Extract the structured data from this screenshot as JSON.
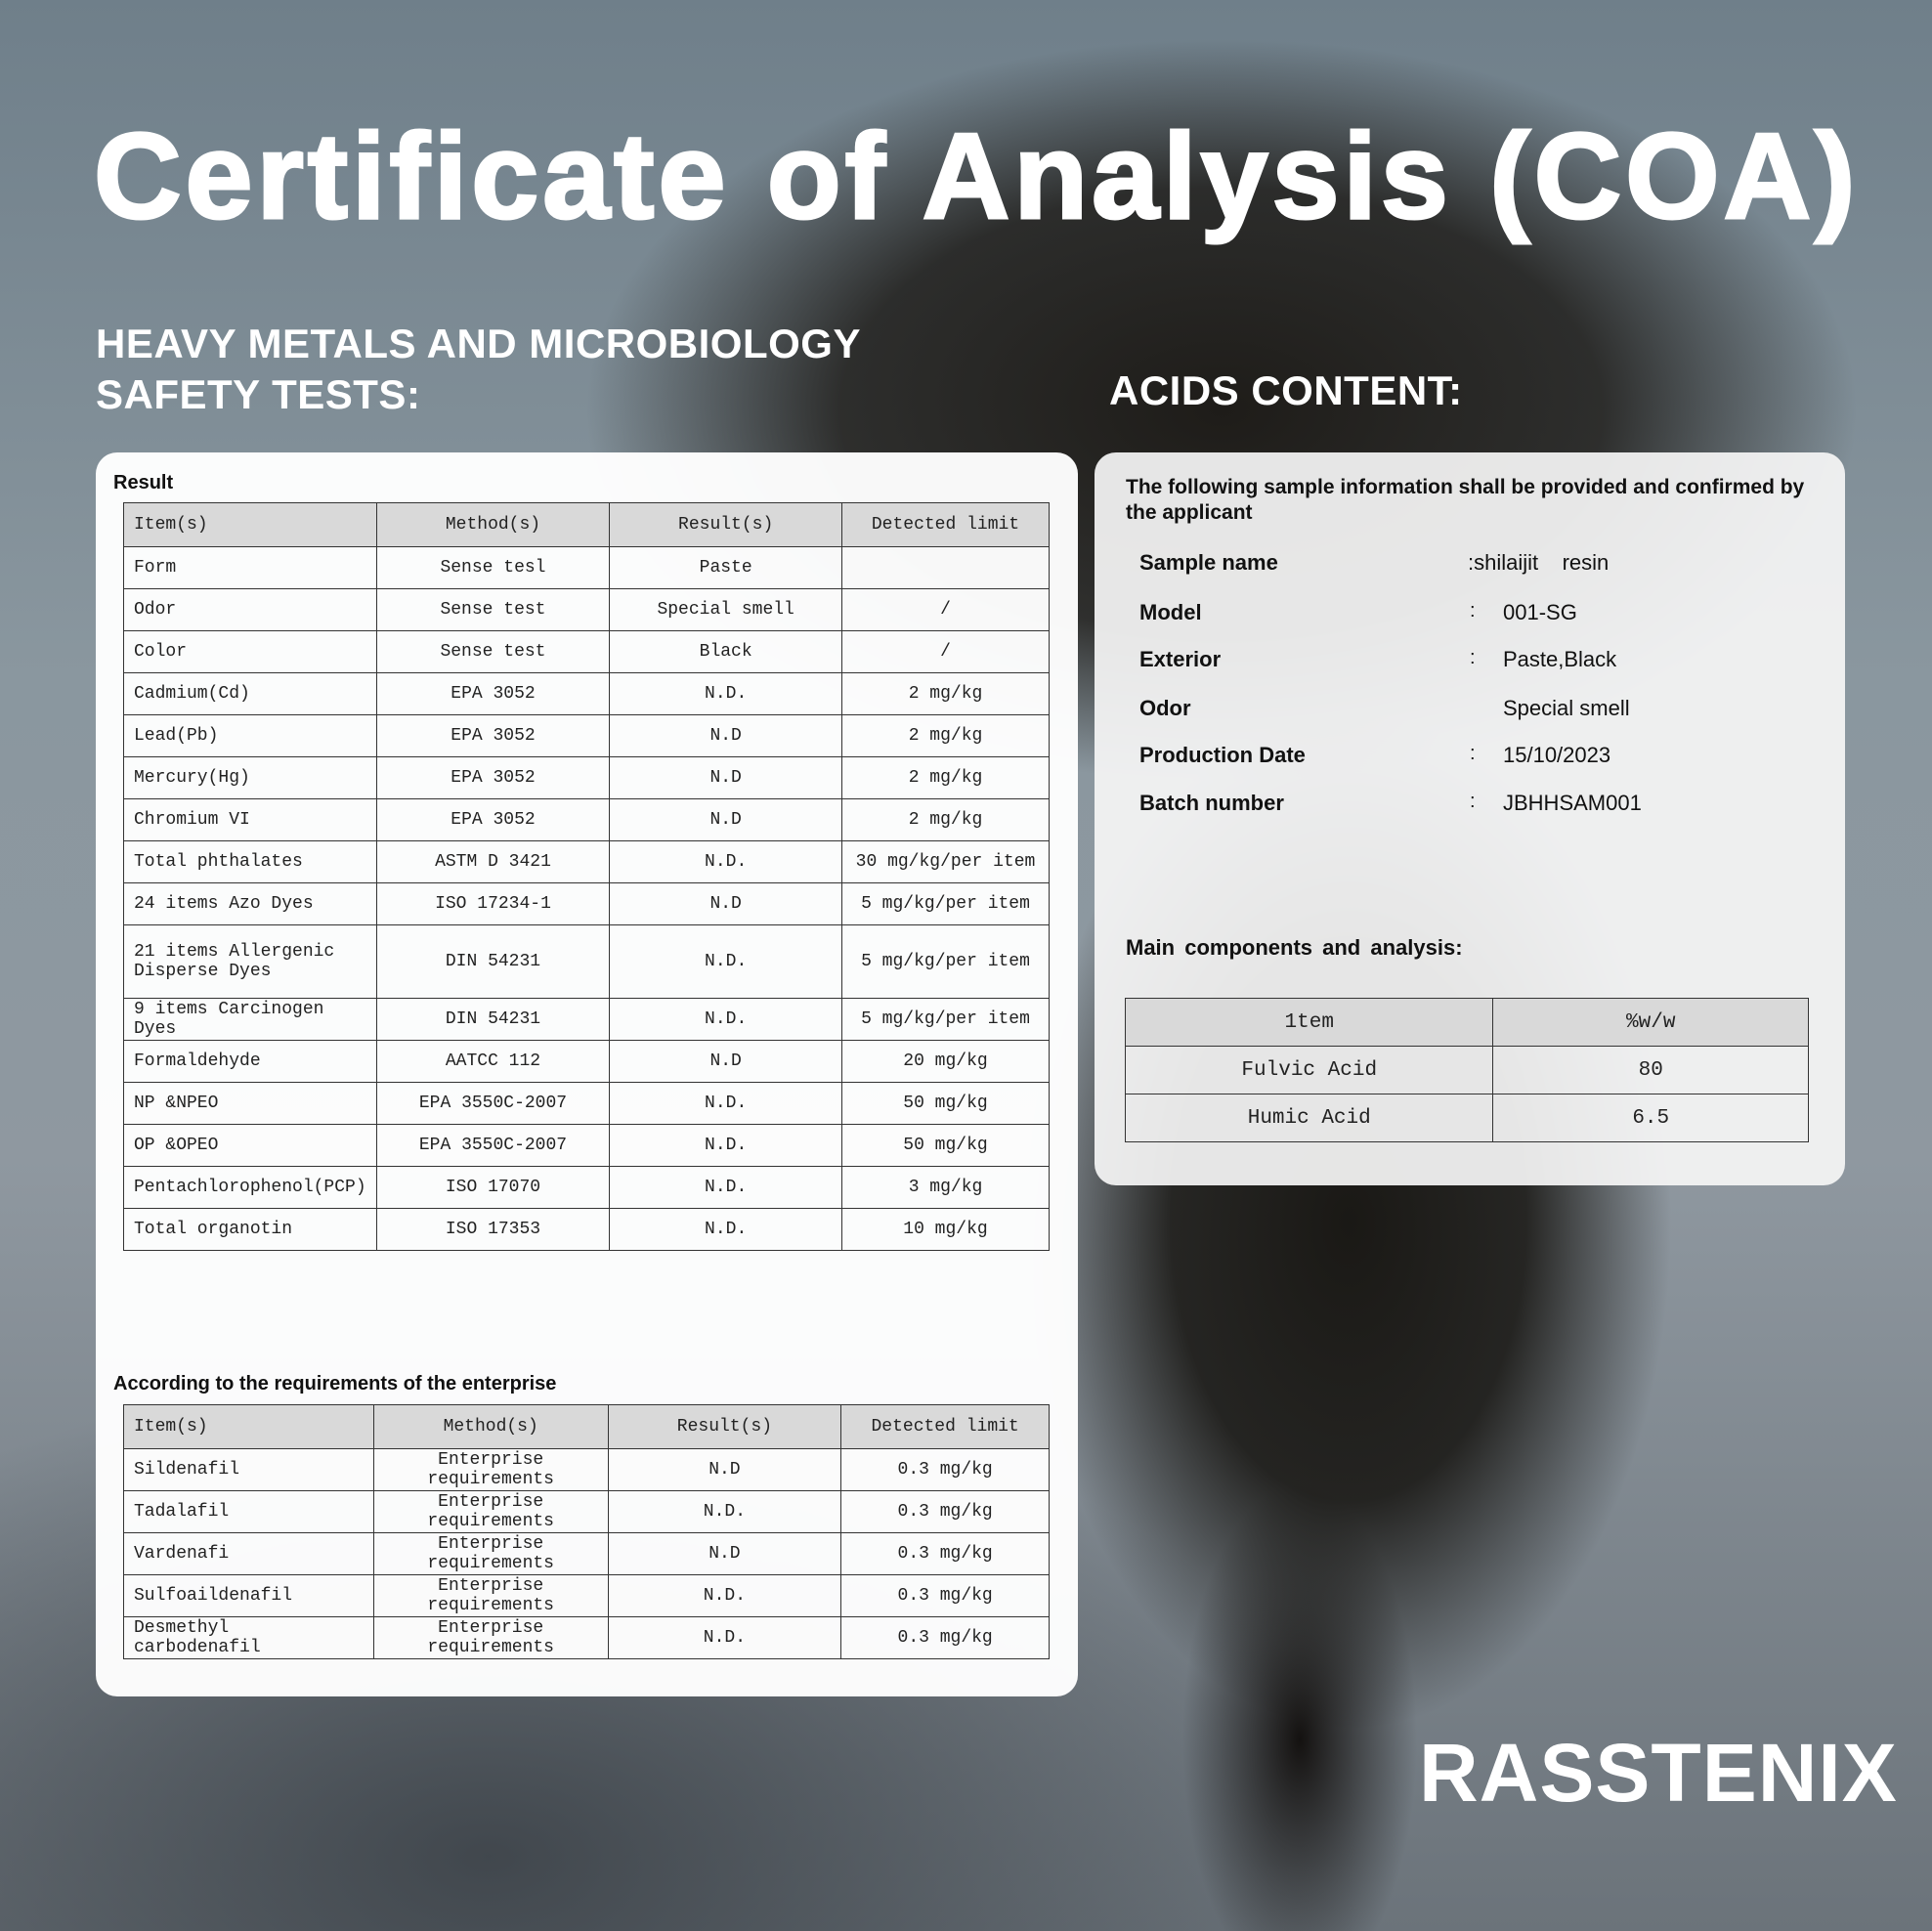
{
  "title": "Certificate of Analysis (COA)",
  "left_heading": [
    "HEAVY METALS AND MICROBIOLOGY",
    "SAFETY TESTS:"
  ],
  "right_heading": "ACIDS CONTENT:",
  "result_section": {
    "label": "Result",
    "headers": [
      "Item(s)",
      "Method(s)",
      "Result(s)",
      "Detected limit"
    ],
    "rows": [
      [
        "Form",
        "Sense tesl",
        "Paste",
        ""
      ],
      [
        "Odor",
        "Sense test",
        "Special smell",
        "/"
      ],
      [
        "Color",
        "Sense test",
        "Black",
        "/"
      ],
      [
        "Cadmium(Cd)",
        "EPA 3052",
        "N.D.",
        "2 mg/kg"
      ],
      [
        "Lead(Pb)",
        "EPA 3052",
        "N.D",
        "2 mg/kg"
      ],
      [
        "Mercury(Hg)",
        "EPA 3052",
        "N.D",
        "2 mg/kg"
      ],
      [
        "Chromium VI",
        "EPA 3052",
        "N.D",
        "2 mg/kg"
      ],
      [
        "Total phthalates",
        "ASTM D 3421",
        "N.D.",
        "30 mg/kg/per item"
      ],
      [
        "24 items Azo Dyes",
        "ISO 17234-1",
        "N.D",
        "5 mg/kg/per item"
      ],
      [
        "21 items Allergenic Disperse Dyes",
        "DIN 54231",
        "N.D.",
        "5 mg/kg/per item"
      ],
      [
        "9 items Carcinogen Dyes",
        "DIN 54231",
        "N.D.",
        "5 mg/kg/per item"
      ],
      [
        "Formaldehyde",
        "AATCC 112",
        "N.D",
        "20 mg/kg"
      ],
      [
        "NP &NPEO",
        "EPA 3550C-2007",
        "N.D.",
        "50 mg/kg"
      ],
      [
        "OP &OPEO",
        "EPA 3550C-2007",
        "N.D.",
        "50 mg/kg"
      ],
      [
        "Pentachlorophenol(PCP)",
        "ISO 17070",
        "N.D.",
        "3 mg/kg"
      ],
      [
        "Total organotin",
        "ISO 17353",
        "N.D.",
        "10 mg/kg"
      ]
    ]
  },
  "enterprise_section": {
    "label": "According to the requirements of the enterprise",
    "headers": [
      "Item(s)",
      "Method(s)",
      "Result(s)",
      "Detected limit"
    ],
    "rows": [
      [
        "Sildenafil",
        "Enterprise requirements",
        "N.D",
        "0.3 mg/kg"
      ],
      [
        "Tadalafil",
        "Enterprise requirements",
        "N.D.",
        "0.3 mg/kg"
      ],
      [
        "Vardenafi",
        "Enterprise requirements",
        "N.D",
        "0.3 mg/kg"
      ],
      [
        "Sulfoaildenafil",
        "Enterprise requirements",
        "N.D.",
        "0.3 mg/kg"
      ],
      [
        "Desmethyl carbodenafil",
        "Enterprise requirements",
        "N.D.",
        "0.3 mg/kg"
      ]
    ]
  },
  "sample_info": {
    "intro": "The following sample information shall be provided and confirmed by the applicant",
    "fields": [
      {
        "label": "Sample name",
        "colon": "",
        "value": ":shilaijit    resin"
      },
      {
        "label": "Model",
        "colon": ":",
        "value": "001-SG"
      },
      {
        "label": "Exterior",
        "colon": ":",
        "value": "Paste,Black"
      },
      {
        "label": "Odor",
        "colon": "",
        "value": "Special smell"
      },
      {
        "label": "Production Date",
        "colon": ":",
        "value": "15/10/2023"
      },
      {
        "label": "Batch number",
        "colon": ":",
        "value": "JBHHSAM001"
      }
    ]
  },
  "components": {
    "label": "Main components and analysis:",
    "headers": [
      "1tem",
      "%w/w"
    ],
    "rows": [
      [
        "Fulvic Acid",
        "80"
      ],
      [
        "Humic Acid",
        "6.5"
      ]
    ]
  },
  "brand": "RASSTENIX"
}
